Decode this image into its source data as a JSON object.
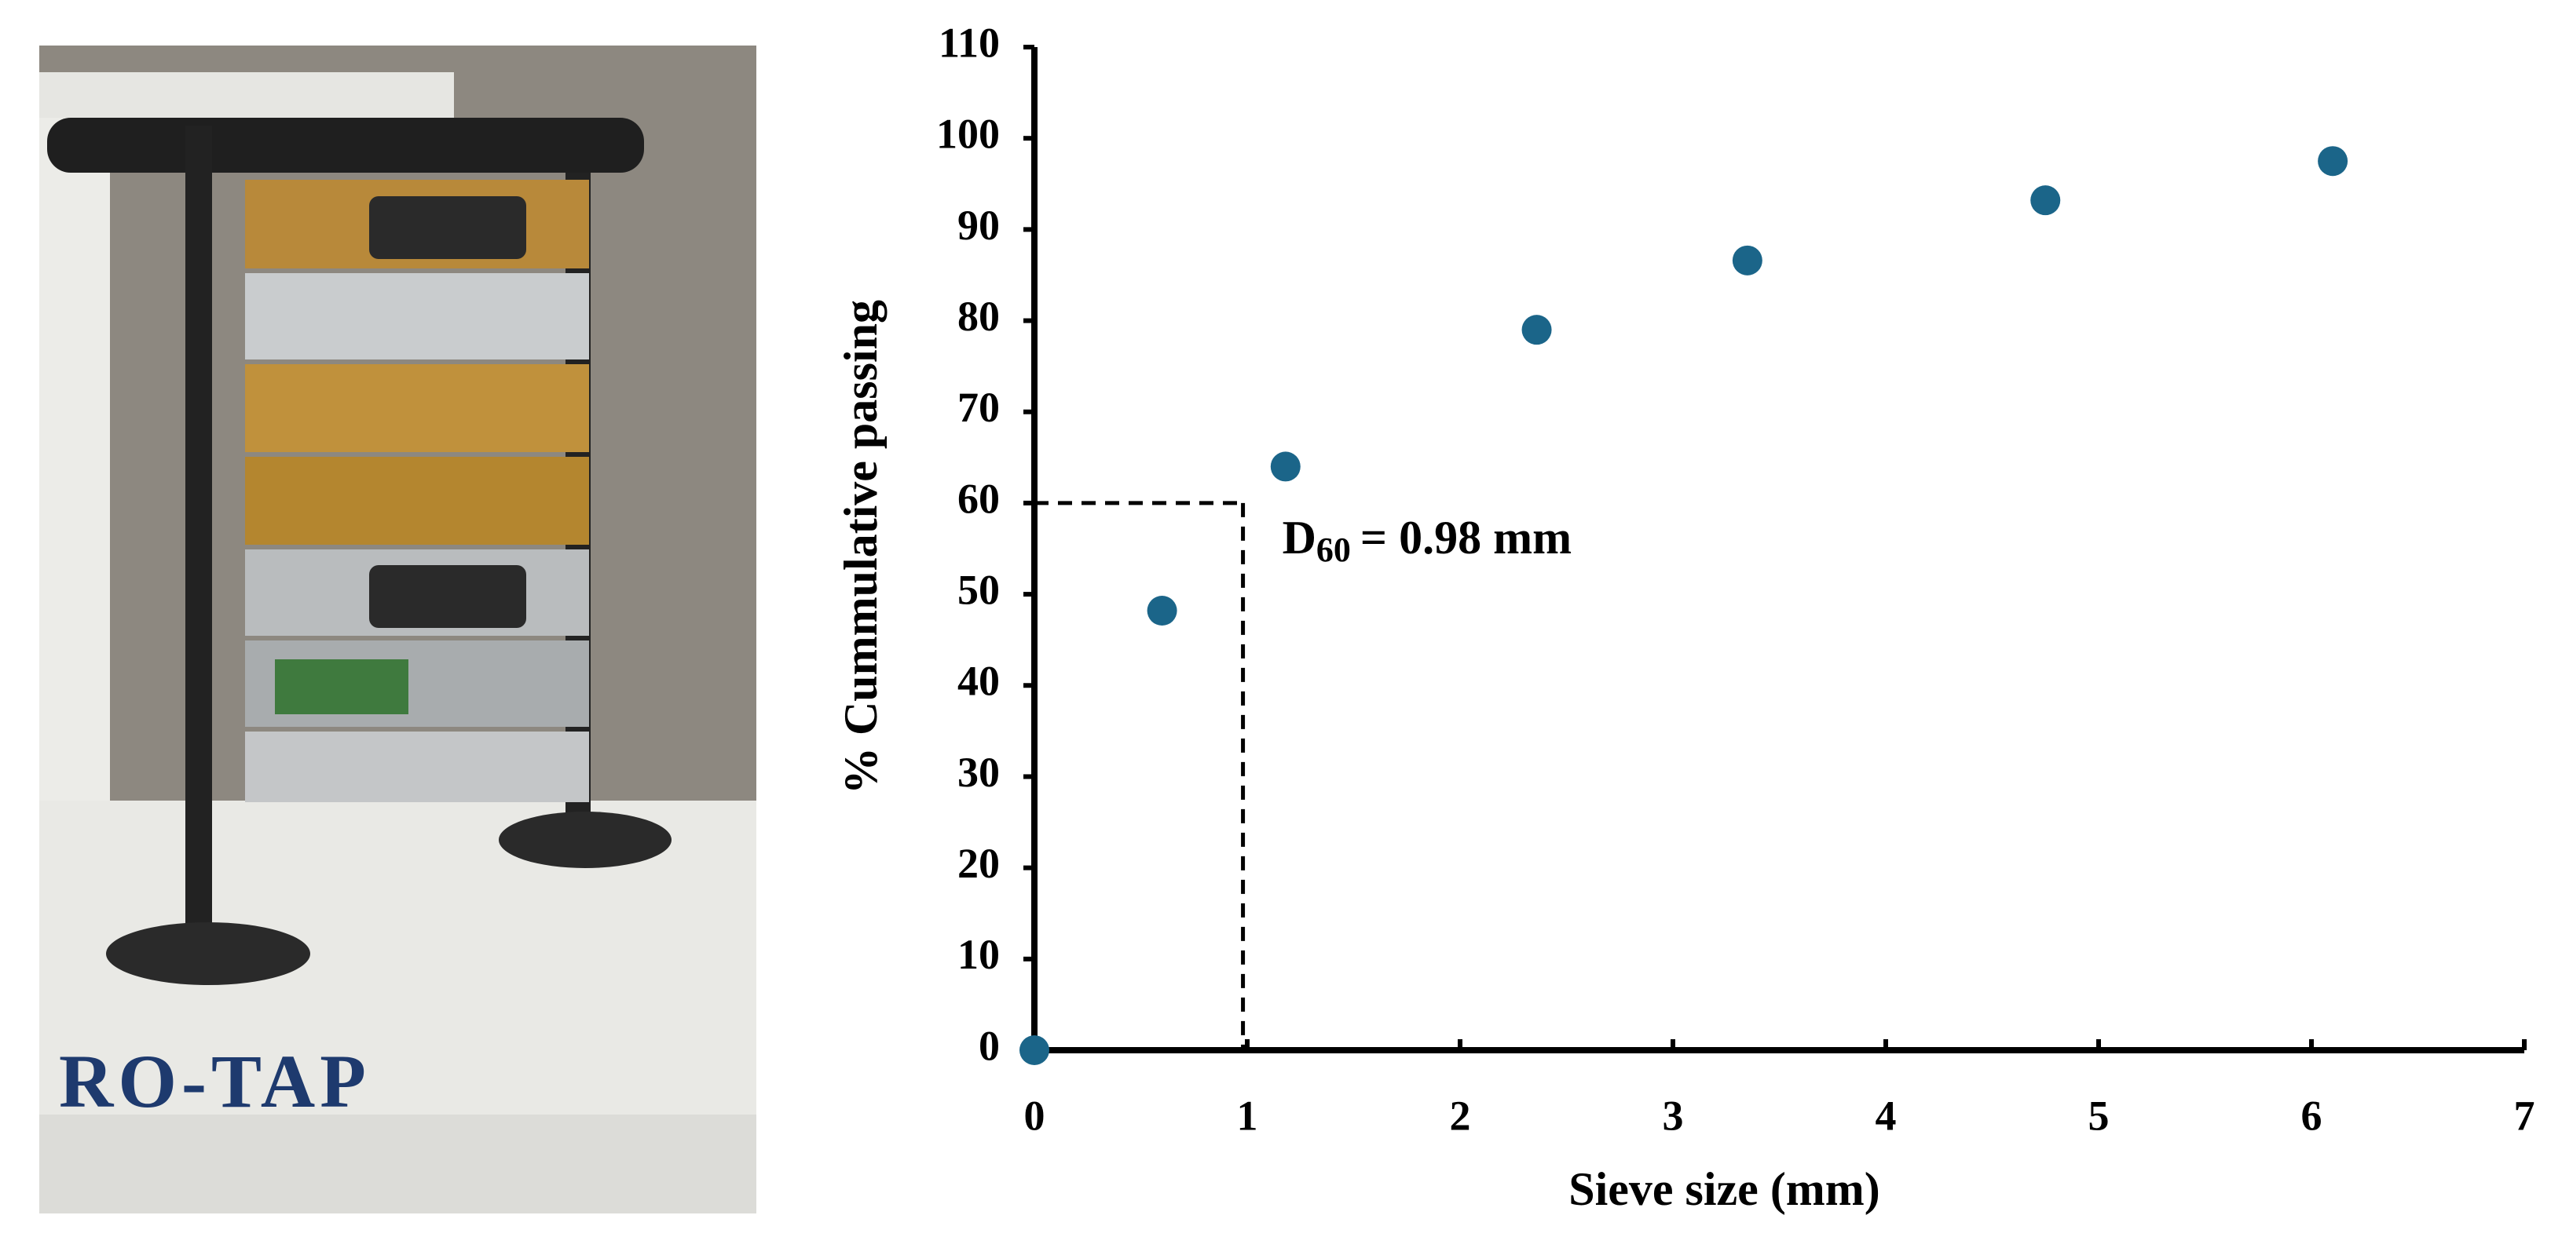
{
  "photo_label": "RO-TAP",
  "chart_data": {
    "type": "scatter",
    "x_label": "Sieve size (mm)",
    "y_label": "% Cummulative passing",
    "x": [
      0,
      0.6,
      1.18,
      2.36,
      3.35,
      4.75,
      6.1
    ],
    "series": [
      {
        "color": "#1b6589",
        "values": [
          0,
          48.2,
          64,
          79,
          86.6,
          93.2,
          97.5
        ]
      }
    ],
    "xlim": [
      0,
      7
    ],
    "xticks": [
      0,
      1,
      2,
      3,
      4,
      5,
      6,
      7
    ],
    "ylim": [
      0,
      110
    ],
    "yticks": [
      0,
      10,
      20,
      30,
      40,
      50,
      60,
      70,
      80,
      90,
      100,
      110
    ],
    "grid": false,
    "reference": {
      "x": 0.98,
      "y": 60,
      "base": "D",
      "subscript": "60",
      "text": "= 0.98 mm"
    }
  }
}
